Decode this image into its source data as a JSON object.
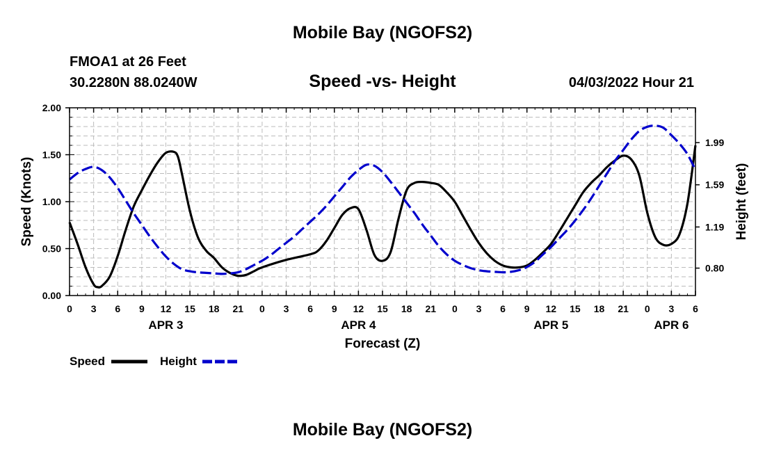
{
  "page_title": "Mobile Bay (NGOFS2)",
  "footer_title": "Mobile Bay (NGOFS2)",
  "station": {
    "name": "FMOA1 at 26 Feet",
    "coords": "30.2280N  88.0240W"
  },
  "forecast_time": "04/03/2022 Hour 21",
  "colors": {
    "speed": "#000000",
    "height": "#0000cc",
    "grid": "#bbbbbb"
  },
  "chart_data": {
    "type": "line",
    "title": "Speed -vs- Height",
    "xlabel": "Forecast (Z)",
    "ylabel": "Speed (Knots)",
    "y2label": "Height (feet)",
    "ylim": [
      0,
      2
    ],
    "y2lim": [
      0.54,
      2.32
    ],
    "x_unit": "hours from Apr 3 00Z",
    "xlim": [
      0,
      78
    ],
    "x_ticks": [
      0,
      3,
      6,
      9,
      12,
      15,
      18,
      21,
      24,
      27,
      30,
      33,
      36,
      39,
      42,
      45,
      48,
      51,
      54,
      57,
      60,
      63,
      66,
      69,
      72,
      75,
      78
    ],
    "x_tick_labels": [
      "0",
      "3",
      "6",
      "9",
      "12",
      "15",
      "18",
      "21",
      "0",
      "3",
      "6",
      "9",
      "12",
      "15",
      "18",
      "21",
      "0",
      "3",
      "6",
      "9",
      "12",
      "15",
      "18",
      "21",
      "0",
      "3",
      "6"
    ],
    "y_ticks": [
      0,
      0.5,
      1,
      1.5,
      2
    ],
    "y_tick_labels": [
      "0.00",
      "0.50",
      "1.00",
      "1.50",
      "2.00"
    ],
    "y2_ticks": [
      0.8,
      1.19,
      1.59,
      1.99
    ],
    "y2_tick_labels": [
      "0.80",
      "1.19",
      "1.59",
      "1.99"
    ],
    "date_labels": [
      {
        "label": "APR 3",
        "hour": 12
      },
      {
        "label": "APR 4",
        "hour": 36
      },
      {
        "label": "APR 5",
        "hour": 60
      },
      {
        "label": "APR 6",
        "hour": 75
      }
    ],
    "legend": [
      {
        "name": "Speed",
        "style": "solid"
      },
      {
        "name": "Height",
        "style": "dashed"
      }
    ],
    "series": [
      {
        "name": "Speed",
        "axis": "left",
        "points": [
          [
            0,
            0.78
          ],
          [
            1,
            0.55
          ],
          [
            2,
            0.3
          ],
          [
            3,
            0.12
          ],
          [
            3.5,
            0.09
          ],
          [
            4,
            0.1
          ],
          [
            5,
            0.2
          ],
          [
            6,
            0.42
          ],
          [
            7,
            0.7
          ],
          [
            8,
            0.95
          ],
          [
            9,
            1.12
          ],
          [
            10,
            1.28
          ],
          [
            11,
            1.42
          ],
          [
            12,
            1.52
          ],
          [
            13,
            1.53
          ],
          [
            13.5,
            1.48
          ],
          [
            14,
            1.3
          ],
          [
            15,
            0.9
          ],
          [
            16,
            0.62
          ],
          [
            17,
            0.48
          ],
          [
            18,
            0.4
          ],
          [
            19,
            0.3
          ],
          [
            20,
            0.24
          ],
          [
            21,
            0.21
          ],
          [
            22,
            0.22
          ],
          [
            23,
            0.26
          ],
          [
            24,
            0.3
          ],
          [
            27,
            0.38
          ],
          [
            30,
            0.44
          ],
          [
            31,
            0.48
          ],
          [
            32,
            0.58
          ],
          [
            33,
            0.72
          ],
          [
            34,
            0.86
          ],
          [
            35,
            0.93
          ],
          [
            36,
            0.92
          ],
          [
            37,
            0.7
          ],
          [
            38,
            0.43
          ],
          [
            39,
            0.37
          ],
          [
            40,
            0.46
          ],
          [
            41,
            0.82
          ],
          [
            42,
            1.12
          ],
          [
            43,
            1.2
          ],
          [
            44,
            1.21
          ],
          [
            45,
            1.2
          ],
          [
            46,
            1.18
          ],
          [
            47,
            1.1
          ],
          [
            48,
            1.0
          ],
          [
            49,
            0.85
          ],
          [
            50,
            0.7
          ],
          [
            51,
            0.56
          ],
          [
            52,
            0.45
          ],
          [
            53,
            0.37
          ],
          [
            54,
            0.32
          ],
          [
            55,
            0.3
          ],
          [
            56,
            0.3
          ],
          [
            57,
            0.32
          ],
          [
            58,
            0.38
          ],
          [
            59,
            0.46
          ],
          [
            60,
            0.55
          ],
          [
            61,
            0.68
          ],
          [
            62,
            0.82
          ],
          [
            63,
            0.96
          ],
          [
            64,
            1.1
          ],
          [
            65,
            1.2
          ],
          [
            66,
            1.28
          ],
          [
            67,
            1.37
          ],
          [
            68,
            1.44
          ],
          [
            69,
            1.49
          ],
          [
            70,
            1.45
          ],
          [
            71,
            1.28
          ],
          [
            72,
            0.88
          ],
          [
            73,
            0.62
          ],
          [
            74,
            0.54
          ],
          [
            75,
            0.55
          ],
          [
            76,
            0.65
          ],
          [
            77,
            0.98
          ],
          [
            78,
            1.6
          ]
        ]
      },
      {
        "name": "Height",
        "axis": "right",
        "points": [
          [
            0,
            1.64
          ],
          [
            1,
            1.7
          ],
          [
            2,
            1.74
          ],
          [
            3,
            1.76
          ],
          [
            4,
            1.73
          ],
          [
            5,
            1.66
          ],
          [
            6,
            1.56
          ],
          [
            7,
            1.44
          ],
          [
            8,
            1.32
          ],
          [
            9,
            1.21
          ],
          [
            10,
            1.1
          ],
          [
            11,
            1.0
          ],
          [
            12,
            0.91
          ],
          [
            13,
            0.84
          ],
          [
            14,
            0.79
          ],
          [
            15,
            0.77
          ],
          [
            16,
            0.76
          ],
          [
            17,
            0.755
          ],
          [
            18,
            0.75
          ],
          [
            19,
            0.745
          ],
          [
            20,
            0.75
          ],
          [
            21,
            0.76
          ],
          [
            22,
            0.79
          ],
          [
            23,
            0.83
          ],
          [
            24,
            0.87
          ],
          [
            25,
            0.92
          ],
          [
            26,
            0.98
          ],
          [
            27,
            1.04
          ],
          [
            28,
            1.1
          ],
          [
            29,
            1.17
          ],
          [
            30,
            1.24
          ],
          [
            31,
            1.31
          ],
          [
            32,
            1.39
          ],
          [
            33,
            1.48
          ],
          [
            34,
            1.57
          ],
          [
            35,
            1.66
          ],
          [
            36,
            1.73
          ],
          [
            37,
            1.78
          ],
          [
            38,
            1.77
          ],
          [
            39,
            1.71
          ],
          [
            40,
            1.62
          ],
          [
            41,
            1.52
          ],
          [
            42,
            1.42
          ],
          [
            43,
            1.32
          ],
          [
            44,
            1.21
          ],
          [
            45,
            1.11
          ],
          [
            46,
            1.01
          ],
          [
            47,
            0.93
          ],
          [
            48,
            0.87
          ],
          [
            49,
            0.83
          ],
          [
            50,
            0.8
          ],
          [
            51,
            0.78
          ],
          [
            52,
            0.77
          ],
          [
            53,
            0.765
          ],
          [
            54,
            0.76
          ],
          [
            55,
            0.765
          ],
          [
            56,
            0.78
          ],
          [
            57,
            0.81
          ],
          [
            58,
            0.86
          ],
          [
            59,
            0.93
          ],
          [
            60,
            1.0
          ],
          [
            61,
            1.08
          ],
          [
            62,
            1.16
          ],
          [
            63,
            1.25
          ],
          [
            64,
            1.35
          ],
          [
            65,
            1.46
          ],
          [
            66,
            1.58
          ],
          [
            67,
            1.7
          ],
          [
            68,
            1.82
          ],
          [
            69,
            1.92
          ],
          [
            70,
            2.02
          ],
          [
            71,
            2.1
          ],
          [
            72,
            2.14
          ],
          [
            73,
            2.15
          ],
          [
            74,
            2.13
          ],
          [
            75,
            2.06
          ],
          [
            76,
            1.98
          ],
          [
            77,
            1.88
          ],
          [
            78,
            1.73
          ]
        ]
      }
    ]
  }
}
